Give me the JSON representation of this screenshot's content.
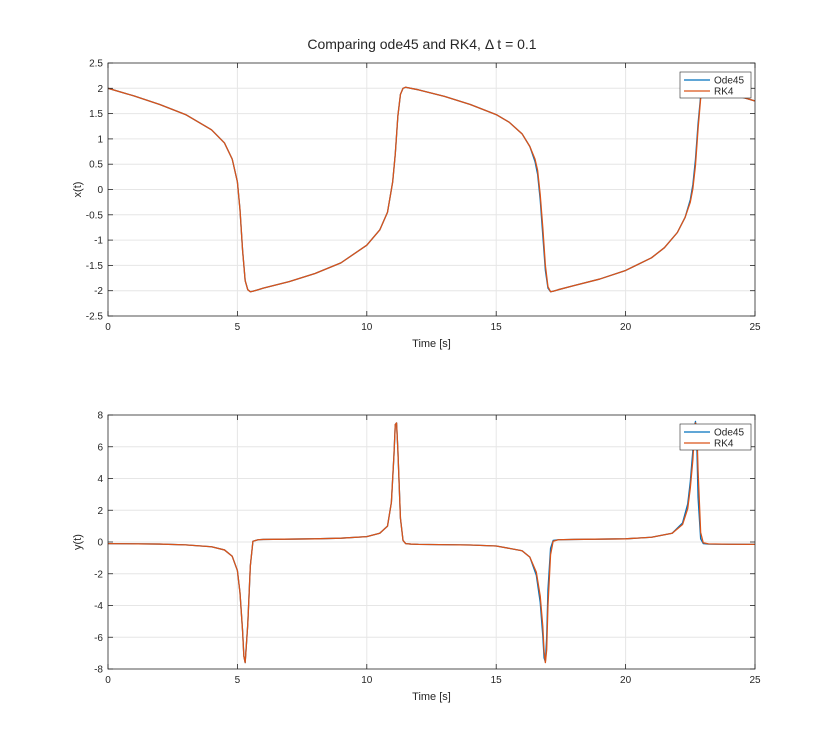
{
  "figure": {
    "title": "Comparing ode45 and RK4, Δ t = 0.1",
    "colors": {
      "ode45": "#0072BD",
      "rk4": "#D95319",
      "grid": "#e6e6e6",
      "axis": "#262626"
    }
  },
  "chart_data": [
    {
      "type": "line",
      "xlabel": "Time [s]",
      "ylabel": "x(t)",
      "xlim": [
        0,
        25
      ],
      "ylim": [
        -2.5,
        2.5
      ],
      "xticks": [
        0,
        5,
        10,
        15,
        20,
        25
      ],
      "yticks": [
        -2.5,
        -2,
        -1.5,
        -1,
        -0.5,
        0,
        0.5,
        1,
        1.5,
        2,
        2.5
      ],
      "grid": true,
      "legend": "top-right",
      "series": [
        {
          "name": "Ode45",
          "color": "#0072BD",
          "x": [
            0,
            1,
            2,
            3,
            4,
            4.5,
            4.8,
            5.0,
            5.1,
            5.2,
            5.3,
            5.4,
            5.5,
            5.6,
            5.8,
            6,
            7,
            8,
            9,
            10,
            10.5,
            10.8,
            11.0,
            11.1,
            11.2,
            11.3,
            11.4,
            11.5,
            11.8,
            12,
            13,
            14,
            15,
            15.5,
            16.0,
            16.3,
            16.5,
            16.6,
            16.7,
            16.8,
            16.9,
            17.0,
            17.1,
            17.2,
            17.4,
            18,
            19,
            20,
            21,
            21.5,
            22.0,
            22.3,
            22.5,
            22.6,
            22.7,
            22.8,
            22.9,
            23.0,
            23.3,
            24,
            25
          ],
          "y": [
            2.0,
            1.85,
            1.68,
            1.48,
            1.18,
            0.92,
            0.6,
            0.15,
            -0.4,
            -1.2,
            -1.8,
            -1.98,
            -2.02,
            -2.01,
            -1.98,
            -1.95,
            -1.82,
            -1.66,
            -1.45,
            -1.1,
            -0.8,
            -0.45,
            0.15,
            0.7,
            1.45,
            1.88,
            2.0,
            2.02,
            1.99,
            1.97,
            1.84,
            1.68,
            1.48,
            1.33,
            1.1,
            0.85,
            0.55,
            0.3,
            -0.2,
            -0.9,
            -1.6,
            -1.95,
            -2.02,
            -2.01,
            -1.98,
            -1.9,
            -1.77,
            -1.6,
            -1.35,
            -1.15,
            -0.85,
            -0.55,
            -0.2,
            0.1,
            0.6,
            1.3,
            1.85,
            2.0,
            1.98,
            1.9,
            1.75
          ]
        },
        {
          "name": "RK4",
          "color": "#D95319",
          "x": [
            0,
            1,
            2,
            3,
            4,
            4.5,
            4.8,
            5.0,
            5.1,
            5.2,
            5.3,
            5.4,
            5.5,
            5.6,
            5.8,
            6,
            7,
            8,
            9,
            10,
            10.5,
            10.8,
            11.0,
            11.1,
            11.2,
            11.3,
            11.4,
            11.5,
            11.8,
            12,
            13,
            14,
            15,
            15.5,
            16.0,
            16.3,
            16.5,
            16.6,
            16.7,
            16.8,
            16.9,
            17.0,
            17.1,
            17.2,
            17.4,
            18,
            19,
            20,
            21,
            21.5,
            22.0,
            22.3,
            22.5,
            22.6,
            22.7,
            22.8,
            22.9,
            23.0,
            23.3,
            24,
            25
          ],
          "y": [
            2.0,
            1.85,
            1.68,
            1.48,
            1.18,
            0.92,
            0.6,
            0.15,
            -0.4,
            -1.2,
            -1.8,
            -1.98,
            -2.02,
            -2.01,
            -1.98,
            -1.95,
            -1.82,
            -1.66,
            -1.45,
            -1.1,
            -0.8,
            -0.45,
            0.15,
            0.7,
            1.45,
            1.88,
            2.0,
            2.02,
            1.99,
            1.97,
            1.84,
            1.68,
            1.48,
            1.33,
            1.1,
            0.85,
            0.6,
            0.38,
            -0.1,
            -0.75,
            -1.5,
            -1.92,
            -2.02,
            -2.01,
            -1.98,
            -1.9,
            -1.77,
            -1.6,
            -1.35,
            -1.15,
            -0.85,
            -0.55,
            -0.25,
            0.02,
            0.48,
            1.2,
            1.8,
            2.0,
            1.98,
            1.9,
            1.75
          ]
        }
      ]
    },
    {
      "type": "line",
      "xlabel": "Time [s]",
      "ylabel": "y(t)",
      "xlim": [
        0,
        25
      ],
      "ylim": [
        -8,
        8
      ],
      "xticks": [
        0,
        5,
        10,
        15,
        20,
        25
      ],
      "yticks": [
        -8,
        -6,
        -4,
        -2,
        0,
        2,
        4,
        6,
        8
      ],
      "grid": true,
      "legend": "top-right",
      "series": [
        {
          "name": "Ode45",
          "color": "#0072BD",
          "x": [
            0,
            2,
            3,
            4,
            4.5,
            4.8,
            5.0,
            5.1,
            5.2,
            5.25,
            5.3,
            5.4,
            5.5,
            5.6,
            5.8,
            6,
            8,
            9,
            10,
            10.5,
            10.8,
            10.95,
            11.05,
            11.1,
            11.15,
            11.2,
            11.3,
            11.4,
            11.5,
            11.7,
            12,
            14,
            15,
            16,
            16.3,
            16.55,
            16.7,
            16.8,
            16.85,
            16.9,
            16.95,
            17.0,
            17.1,
            17.2,
            17.4,
            18,
            20,
            21,
            21.8,
            22.2,
            22.4,
            22.5,
            22.6,
            22.65,
            22.7,
            22.75,
            22.8,
            22.9,
            23.0,
            23.2,
            24,
            25
          ],
          "y": [
            -0.1,
            -0.13,
            -0.18,
            -0.3,
            -0.5,
            -0.9,
            -1.8,
            -3.2,
            -5.6,
            -7.2,
            -7.6,
            -5.2,
            -1.5,
            0.05,
            0.14,
            0.16,
            0.2,
            0.24,
            0.34,
            0.55,
            1.0,
            2.5,
            5.5,
            7.4,
            7.5,
            5.8,
            1.5,
            0.1,
            -0.1,
            -0.13,
            -0.15,
            -0.19,
            -0.25,
            -0.55,
            -0.95,
            -2.1,
            -3.8,
            -5.9,
            -7.3,
            -7.55,
            -6.0,
            -3.0,
            -0.4,
            0.1,
            0.14,
            0.16,
            0.2,
            0.3,
            0.55,
            1.2,
            2.4,
            3.8,
            5.8,
            7.2,
            7.6,
            6.2,
            2.8,
            0.2,
            -0.1,
            -0.13,
            -0.14,
            -0.15
          ]
        },
        {
          "name": "RK4",
          "color": "#D95319",
          "x": [
            0,
            2,
            3,
            4,
            4.5,
            4.8,
            5.0,
            5.1,
            5.2,
            5.25,
            5.3,
            5.4,
            5.5,
            5.6,
            5.8,
            6,
            8,
            9,
            10,
            10.5,
            10.8,
            10.95,
            11.05,
            11.1,
            11.15,
            11.2,
            11.3,
            11.4,
            11.5,
            11.7,
            12,
            14,
            15,
            16,
            16.3,
            16.55,
            16.7,
            16.8,
            16.85,
            16.9,
            16.95,
            17.0,
            17.1,
            17.2,
            17.4,
            18,
            20,
            21,
            21.8,
            22.2,
            22.4,
            22.5,
            22.6,
            22.65,
            22.7,
            22.75,
            22.8,
            22.9,
            23.0,
            23.2,
            24,
            25
          ],
          "y": [
            -0.1,
            -0.13,
            -0.18,
            -0.3,
            -0.5,
            -0.9,
            -1.8,
            -3.2,
            -5.6,
            -7.2,
            -7.6,
            -5.2,
            -1.5,
            0.05,
            0.14,
            0.16,
            0.2,
            0.24,
            0.34,
            0.55,
            1.0,
            2.5,
            5.5,
            7.4,
            7.5,
            5.8,
            1.5,
            0.1,
            -0.1,
            -0.13,
            -0.15,
            -0.19,
            -0.25,
            -0.55,
            -0.95,
            -1.9,
            -3.4,
            -5.3,
            -6.9,
            -7.6,
            -6.8,
            -4.0,
            -0.8,
            0.05,
            0.14,
            0.16,
            0.2,
            0.3,
            0.55,
            1.1,
            2.1,
            3.4,
            5.2,
            6.7,
            7.5,
            7.3,
            4.5,
            0.6,
            -0.05,
            -0.12,
            -0.14,
            -0.15
          ]
        }
      ]
    }
  ]
}
